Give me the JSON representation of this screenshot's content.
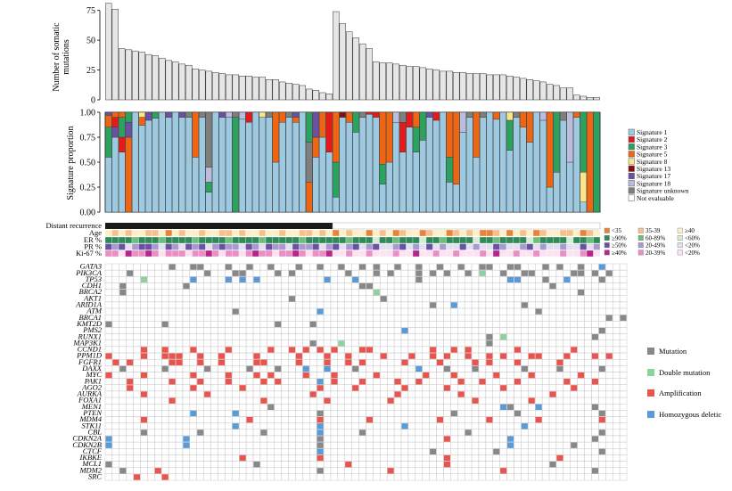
{
  "chart_data": [
    {
      "type": "bar",
      "ylabel": "Number of somatic mutations",
      "ylim": [
        0,
        80
      ],
      "yticks": [
        0,
        25,
        50,
        75
      ],
      "values": [
        81,
        76,
        43,
        42,
        41,
        40,
        38,
        37,
        35,
        33,
        32,
        30,
        29,
        26,
        25,
        24,
        23,
        22,
        21,
        21,
        20,
        20,
        19,
        19,
        17,
        17,
        15,
        14,
        13,
        12,
        9,
        8,
        6,
        5,
        74,
        64,
        57,
        52,
        47,
        43,
        32,
        31,
        31,
        30,
        29,
        28,
        28,
        27,
        26,
        25,
        24,
        24,
        23,
        23,
        22,
        22,
        22,
        21,
        21,
        21,
        20,
        19,
        18,
        17,
        16,
        15,
        13,
        12,
        10,
        10,
        4,
        3,
        2,
        2
      ],
      "bar_color": "#e6e6e6"
    },
    {
      "type": "stacked_bar",
      "ylabel": "Signature proportion",
      "ylim": [
        0,
        1
      ],
      "ytick_labels": [
        "0.00",
        "0.25",
        "0.50",
        "0.75",
        "1.00"
      ],
      "legend": {
        "placement": "right",
        "entries": [
          {
            "label": "Signature 1",
            "color": "#9ecae1"
          },
          {
            "label": "Signature 2",
            "color": "#e41a1c"
          },
          {
            "label": "Signature 3",
            "color": "#2ca25f"
          },
          {
            "label": "Signature 5",
            "color": "#f06511"
          },
          {
            "label": "Signature 8",
            "color": "#fde68a"
          },
          {
            "label": "Signature 13",
            "color": "#8b0d0d"
          },
          {
            "label": "Signature 17",
            "color": "#6a51a3"
          },
          {
            "label": "Signature 18",
            "color": "#bcbddc"
          },
          {
            "label": "Signature unknown",
            "color": "#7f7f7f"
          },
          {
            "label": "Not evaluable",
            "color": "#ffffff"
          }
        ]
      },
      "segments": [
        [
          [
            0,
            0.55
          ],
          [
            2,
            0.3
          ],
          [
            3,
            0.12
          ],
          [
            6,
            0.03
          ]
        ],
        [
          [
            0,
            0.75
          ],
          [
            6,
            0.1
          ],
          [
            1,
            0.1
          ],
          [
            3,
            0.05
          ]
        ],
        [
          [
            0,
            0.6
          ],
          [
            1,
            0.15
          ],
          [
            2,
            0.2
          ],
          [
            3,
            0.05
          ]
        ],
        [
          [
            3,
            0.75
          ],
          [
            6,
            0.15
          ],
          [
            2,
            0.1
          ]
        ],
        [
          [
            0,
            1.0
          ]
        ],
        [
          [
            0,
            0.87
          ],
          [
            3,
            0.08
          ],
          [
            4,
            0.05
          ]
        ],
        [
          [
            0,
            0.92
          ],
          [
            6,
            0.08
          ]
        ],
        [
          [
            0,
            0.94
          ],
          [
            2,
            0.06
          ]
        ],
        [
          [
            0,
            1.0
          ]
        ],
        [
          [
            0,
            0.95
          ],
          [
            6,
            0.05
          ]
        ],
        [
          [
            0,
            1.0
          ]
        ],
        [
          [
            0,
            0.95
          ],
          [
            6,
            0.05
          ]
        ],
        [
          [
            0,
            0.95
          ],
          [
            8,
            0.05
          ]
        ],
        [
          [
            0,
            0.55
          ],
          [
            3,
            0.45
          ]
        ],
        [
          [
            0,
            0.95
          ],
          [
            8,
            0.05
          ]
        ],
        [
          [
            0,
            0.2
          ],
          [
            2,
            0.1
          ],
          [
            7,
            0.15
          ],
          [
            8,
            0.55
          ]
        ],
        [
          [
            0,
            1.0
          ]
        ],
        [
          [
            0,
            0.95
          ],
          [
            6,
            0.05
          ]
        ],
        [
          [
            0,
            0.95
          ],
          [
            7,
            0.05
          ]
        ],
        [
          [
            2,
            0.95
          ],
          [
            8,
            0.05
          ]
        ],
        [
          [
            0,
            0.93
          ],
          [
            7,
            0.07
          ]
        ],
        [
          [
            0,
            0.9
          ],
          [
            1,
            0.1
          ]
        ],
        [
          [
            0,
            1.0
          ]
        ],
        [
          [
            0,
            0.95
          ],
          [
            4,
            0.05
          ]
        ],
        [
          [
            0,
            0.95
          ],
          [
            8,
            0.05
          ]
        ],
        [
          [
            0,
            0.5
          ],
          [
            3,
            0.5
          ]
        ],
        [
          [
            0,
            0.9
          ],
          [
            3,
            0.1
          ]
        ],
        [
          [
            0,
            0.95
          ],
          [
            8,
            0.05
          ]
        ],
        [
          [
            0,
            0.9
          ],
          [
            3,
            0.05
          ],
          [
            6,
            0.05
          ]
        ],
        [
          [
            0,
            1.0
          ]
        ],
        [
          [
            3,
            0.3
          ],
          [
            8,
            0.4
          ],
          [
            2,
            0.3
          ]
        ],
        [
          [
            0,
            0.55
          ],
          [
            3,
            0.2
          ],
          [
            6,
            0.25
          ]
        ],
        [
          [
            0,
            0.75
          ],
          [
            3,
            0.25
          ]
        ],
        [
          [
            0,
            0.6
          ],
          [
            1,
            0.4
          ]
        ],
        [
          [
            0,
            0.15
          ],
          [
            2,
            0.35
          ],
          [
            3,
            0.5
          ]
        ],
        [
          [
            0,
            0.95
          ],
          [
            5,
            0.05
          ]
        ],
        [
          [
            0,
            0.9
          ],
          [
            3,
            0.1
          ]
        ],
        [
          [
            0,
            0.8
          ],
          [
            2,
            0.2
          ]
        ],
        [
          [
            0,
            0.95
          ],
          [
            8,
            0.05
          ]
        ],
        [
          [
            0,
            0.98
          ],
          [
            1,
            0.02
          ]
        ],
        [
          [
            0,
            0.95
          ],
          [
            1,
            0.05
          ]
        ],
        [
          [
            0,
            0.28
          ],
          [
            2,
            0.2
          ],
          [
            3,
            0.52
          ]
        ],
        [
          [
            0,
            0.5
          ],
          [
            3,
            0.5
          ]
        ],
        [
          [
            0,
            0.9
          ],
          [
            7,
            0.1
          ]
        ],
        [
          [
            0,
            0.6
          ],
          [
            1,
            0.3
          ],
          [
            8,
            0.1
          ]
        ],
        [
          [
            0,
            0.85
          ],
          [
            1,
            0.15
          ]
        ],
        [
          [
            0,
            0.6
          ],
          [
            2,
            0.25
          ],
          [
            3,
            0.15
          ]
        ],
        [
          [
            0,
            0.72
          ],
          [
            2,
            0.28
          ]
        ],
        [
          [
            0,
            0.95
          ],
          [
            6,
            0.05
          ]
        ],
        [
          [
            0,
            0.92
          ],
          [
            1,
            0.08
          ]
        ],
        [
          [
            0,
            1.0
          ]
        ],
        [
          [
            0,
            0.3
          ],
          [
            2,
            0.25
          ],
          [
            3,
            0.45
          ]
        ],
        [
          [
            0,
            0.28
          ],
          [
            3,
            0.72
          ]
        ],
        [
          [
            0,
            0.8
          ],
          [
            7,
            0.2
          ]
        ],
        [
          [
            0,
            0.95
          ],
          [
            8,
            0.05
          ]
        ],
        [
          [
            0,
            0.55
          ],
          [
            3,
            0.45
          ]
        ],
        [
          [
            0,
            0.95
          ],
          [
            8,
            0.05
          ]
        ],
        [
          [
            0,
            1.0
          ]
        ],
        [
          [
            0,
            0.93
          ],
          [
            3,
            0.07
          ]
        ],
        [
          [
            0,
            1.0
          ]
        ],
        [
          [
            0,
            0.62
          ],
          [
            2,
            0.3
          ],
          [
            4,
            0.08
          ]
        ],
        [
          [
            0,
            0.95
          ],
          [
            8,
            0.05
          ]
        ],
        [
          [
            0,
            0.85
          ],
          [
            3,
            0.15
          ]
        ],
        [
          [
            0,
            0.7
          ],
          [
            3,
            0.3
          ]
        ],
        [
          [
            0,
            1.0
          ]
        ],
        [
          [
            0,
            0.92
          ],
          [
            7,
            0.08
          ]
        ],
        [
          [
            0,
            0.25
          ],
          [
            3,
            0.75
          ]
        ],
        [
          [
            0,
            0.4
          ],
          [
            2,
            0.6
          ]
        ],
        [
          [
            0,
            0.92
          ],
          [
            8,
            0.08
          ]
        ],
        [
          [
            0,
            0.5
          ],
          [
            7,
            0.5
          ]
        ],
        [
          [
            0,
            0.95
          ],
          [
            3,
            0.05
          ]
        ],
        [
          [
            0,
            0.1
          ],
          [
            4,
            0.3
          ],
          [
            2,
            0.6
          ]
        ],
        [
          [
            3,
            1.0
          ]
        ],
        [
          [
            2,
            1.0
          ]
        ]
      ]
    },
    {
      "type": "heatmap",
      "rows": [
        "Distant recurrence",
        "Age",
        "ER %",
        "PR %",
        "Ki-67 %"
      ],
      "legend_groups": [
        {
          "label": "Age",
          "entries": [
            {
              "label": "<35",
              "color": "#e6843b"
            },
            {
              "label": "35-39",
              "color": "#f6c08c"
            },
            {
              "label": "≥40",
              "color": "#fdf0c8"
            }
          ]
        },
        {
          "label": "ER %",
          "entries": [
            {
              "label": "≥90%",
              "color": "#2e8b57"
            },
            {
              "label": "60-89%",
              "color": "#6bbf7a"
            },
            {
              "label": "<60%",
              "color": "#d4eed4"
            }
          ]
        },
        {
          "label": "PR %",
          "entries": [
            {
              "label": "≥50%",
              "color": "#6a51a3"
            },
            {
              "label": "20-49%",
              "color": "#a89ad0"
            },
            {
              "label": "<20%",
              "color": "#e3dff0"
            }
          ]
        },
        {
          "label": "Ki-67 %",
          "entries": [
            {
              "label": "≥40%",
              "color": "#b5268c"
            },
            {
              "label": "20-39%",
              "color": "#e98fc6"
            },
            {
              "label": "<20%",
              "color": "#fbe3f1"
            }
          ]
        }
      ]
    },
    {
      "type": "heatmap",
      "genes": [
        "GATA3",
        "PIK3CA",
        "TP53",
        "CDH1",
        "BRCA2",
        "AKT1",
        "ARID1A",
        "ATM",
        "BRCA1",
        "KMT2D",
        "PMS2",
        "RUNX1",
        "MAP3K1",
        "CCND1",
        "PPM1D",
        "FGFR1",
        "DAXX",
        "MYC",
        "PAK1",
        "AGO2",
        "AURKA",
        "FOXA1",
        "MEN1",
        "PTEN",
        "MDM4",
        "STK11",
        "CBL",
        "CDKN2A",
        "CDKN2B",
        "CTCF",
        "IKBKE",
        "MCL1",
        "MDM2",
        "SRC"
      ],
      "legend": [
        {
          "label": "Mutation",
          "color": "#888888"
        },
        {
          "label": "Double mutation",
          "color": "#8fd19e"
        },
        {
          "label": "Amplification",
          "color": "#e8554e"
        },
        {
          "label": "Homozygous deletic",
          "color": "#5b9bd5"
        }
      ]
    }
  ]
}
